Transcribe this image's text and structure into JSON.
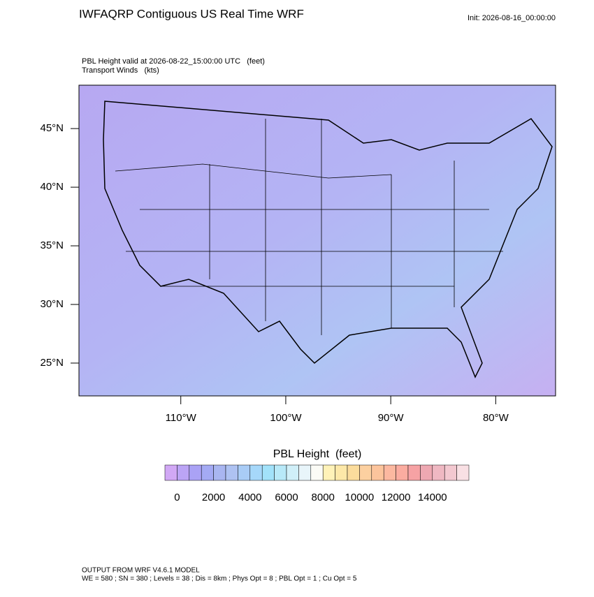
{
  "chart_data": {
    "type": "map",
    "title": "IWFAQRP Contiguous US Real Time WRF",
    "init": "Init: 2026-08-16_00:00:00",
    "subtitle": "PBL Height valid at 2026-08-22_15:00:00 UTC   (feet)",
    "subtitle2": "Transport Winds   (kts)",
    "xlim": [
      -119.7,
      -74.3
    ],
    "ylim": [
      22.2,
      48.7
    ],
    "xticks": [
      {
        "value": -110,
        "label": "110°W"
      },
      {
        "value": -100,
        "label": "100°W"
      },
      {
        "value": -90,
        "label": "90°W"
      },
      {
        "value": -80,
        "label": "80°W"
      }
    ],
    "yticks": [
      {
        "value": 45,
        "label": "45°N"
      },
      {
        "value": 40,
        "label": "40°N"
      },
      {
        "value": 35,
        "label": "35°N"
      },
      {
        "value": 30,
        "label": "30°N"
      },
      {
        "value": 25,
        "label": "25°N"
      }
    ],
    "colorbar": {
      "title": "PBL Height  (feet)",
      "clim": [
        -667,
        16000
      ],
      "colors": [
        "#d1a8f5",
        "#bba4f5",
        "#aaa2f5",
        "#a4aaf4",
        "#a9b6f1",
        "#aec2f2",
        "#a9ccf6",
        "#a6d8fa",
        "#a2e2fa",
        "#b8e9f8",
        "#d0eff8",
        "#e8f5fa",
        "#fbfbf6",
        "#fff2b8",
        "#fde8a8",
        "#fbdc9c",
        "#fcd0a0",
        "#fcc49c",
        "#fcb8a0",
        "#fbaca0",
        "#f6a2a4",
        "#eea8b2",
        "#efb8c2",
        "#f3c8d0",
        "#f9e0e4"
      ],
      "ticks": [
        0,
        2000,
        4000,
        6000,
        8000,
        10000,
        12000,
        14000
      ]
    },
    "footer": "OUTPUT FROM WRF V4.6.1 MODEL",
    "footer2": "WE = 580 ; SN = 380 ; Levels = 38 ; Dis = 8km ; Phys Opt = 8 ; PBL Opt = 1 ; Cu Opt = 5"
  }
}
